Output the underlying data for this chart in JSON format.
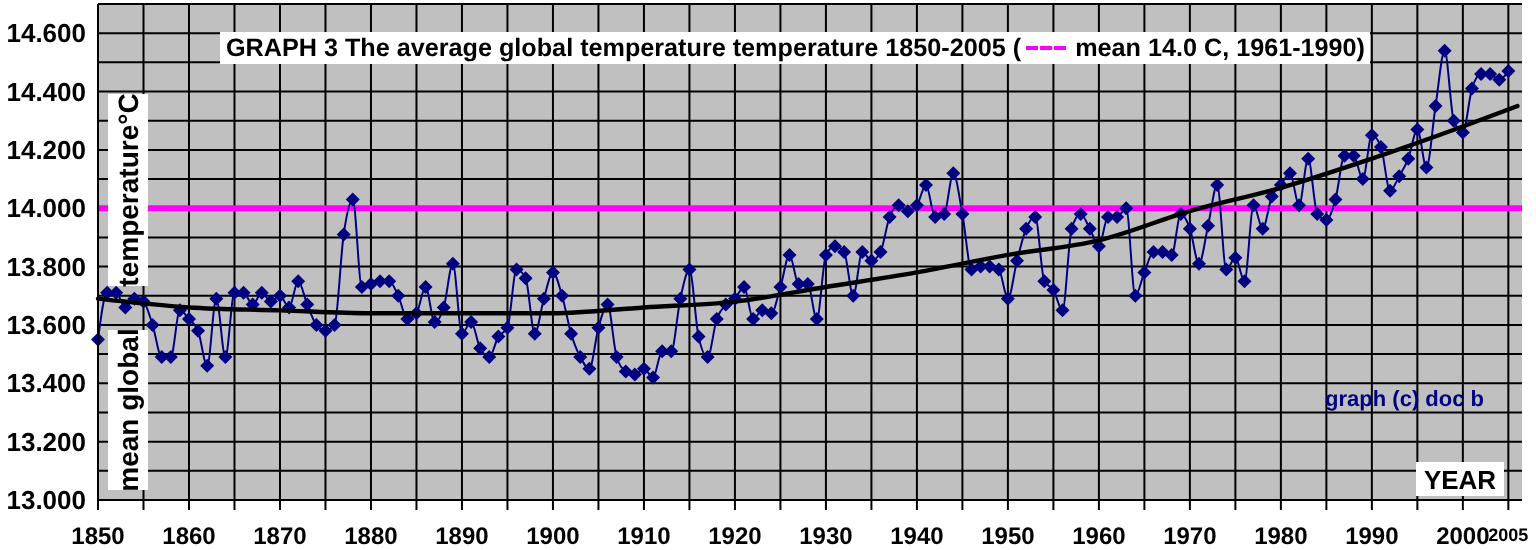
{
  "chart_data": {
    "type": "line",
    "title": "GRAPH 3 The average global temperature temperature 1850-2005 (",
    "xlabel": "YEAR",
    "ylabel": "mean global temperature°C",
    "annotations": [
      "graph (c) doc b"
    ],
    "xlim": [
      1850,
      2006.5
    ],
    "ylim": [
      13,
      14.7
    ],
    "xticks": [
      1850,
      {
        "value": 1855,
        "label": null
      },
      1860,
      {
        "value": 1865,
        "label": null
      },
      1870,
      {
        "value": 1875,
        "label": null
      },
      1880,
      {
        "value": 1885,
        "label": null
      },
      1890,
      {
        "value": 1895,
        "label": null
      },
      1900,
      {
        "value": 1905,
        "label": null
      },
      1910,
      {
        "value": 1915,
        "label": null
      },
      1920,
      {
        "value": 1925,
        "label": null
      },
      1930,
      {
        "value": 1935,
        "label": null
      },
      1940,
      {
        "value": 1945,
        "label": null
      },
      1950,
      {
        "value": 1955,
        "label": null
      },
      1960,
      {
        "value": 1965,
        "label": null
      },
      1970,
      {
        "value": 1975,
        "label": null
      },
      1980,
      {
        "value": 1985,
        "label": null
      },
      1990,
      {
        "value": 1995,
        "label": null
      },
      2000,
      2005
    ],
    "yticks": [
      {
        "value": 13,
        "label": "13.000"
      },
      {
        "value": 13.1,
        "label": null
      },
      {
        "value": 13.2,
        "label": "13.200"
      },
      {
        "value": 13.3,
        "label": null
      },
      {
        "value": 13.4,
        "label": "13.400"
      },
      {
        "value": 13.5,
        "label": null
      },
      {
        "value": 13.6,
        "label": "13.600"
      },
      {
        "value": 13.7,
        "label": null
      },
      {
        "value": 13.8,
        "label": "13.800"
      },
      {
        "value": 13.9,
        "label": null
      },
      {
        "value": 14,
        "label": "14.000"
      },
      {
        "value": 14.1,
        "label": null
      },
      {
        "value": 14.2,
        "label": "14.200"
      },
      {
        "value": 14.3,
        "label": null
      },
      {
        "value": 14.4,
        "label": "14.400"
      },
      {
        "value": 14.5,
        "label": null
      },
      {
        "value": 14.6,
        "label": "14.600"
      },
      {
        "value": 14.7,
        "label": null
      }
    ],
    "grid": true,
    "marker": "diamond",
    "line_style": "solid",
    "ref_lines": [
      {
        "axis": "y",
        "value": 14.0,
        "label": "mean 14.0 C, 1961-1990)",
        "color": "#ff00ff",
        "line_style": "solid"
      }
    ],
    "series": [
      {
        "color": "#000080",
        "x": [
          1850,
          1851,
          1852,
          1853,
          1854,
          1855,
          1856,
          1857,
          1858,
          1859,
          1860,
          1861,
          1862,
          1863,
          1864,
          1865,
          1866,
          1867,
          1868,
          1869,
          1870,
          1871,
          1872,
          1873,
          1874,
          1875,
          1876,
          1877,
          1878,
          1879,
          1880,
          1881,
          1882,
          1883,
          1884,
          1885,
          1886,
          1887,
          1888,
          1889,
          1890,
          1891,
          1892,
          1893,
          1894,
          1895,
          1896,
          1897,
          1898,
          1899,
          1900,
          1901,
          1902,
          1903,
          1904,
          1905,
          1906,
          1907,
          1908,
          1909,
          1910,
          1911,
          1912,
          1913,
          1914,
          1915,
          1916,
          1917,
          1918,
          1919,
          1920,
          1921,
          1922,
          1923,
          1924,
          1925,
          1926,
          1927,
          1928,
          1929,
          1930,
          1931,
          1932,
          1933,
          1934,
          1935,
          1936,
          1937,
          1938,
          1939,
          1940,
          1941,
          1942,
          1943,
          1944,
          1945,
          1946,
          1947,
          1948,
          1949,
          1950,
          1951,
          1952,
          1953,
          1954,
          1955,
          1956,
          1957,
          1958,
          1959,
          1960,
          1961,
          1962,
          1963,
          1964,
          1965,
          1966,
          1967,
          1968,
          1969,
          1970,
          1971,
          1972,
          1973,
          1974,
          1975,
          1976,
          1977,
          1978,
          1979,
          1980,
          1981,
          1982,
          1983,
          1984,
          1985,
          1986,
          1987,
          1988,
          1989,
          1990,
          1991,
          1992,
          1993,
          1994,
          1995,
          1996,
          1997,
          1998,
          1999,
          2000,
          2001,
          2002,
          2003,
          2004,
          2005
        ],
        "values": [
          13.55,
          13.71,
          13.71,
          13.66,
          13.69,
          13.68,
          13.6,
          13.49,
          13.49,
          13.65,
          13.62,
          13.58,
          13.46,
          13.69,
          13.49,
          13.71,
          13.71,
          13.67,
          13.71,
          13.68,
          13.7,
          13.66,
          13.75,
          13.67,
          13.6,
          13.58,
          13.6,
          13.91,
          14.03,
          13.73,
          13.74,
          13.75,
          13.75,
          13.7,
          13.62,
          13.64,
          13.73,
          13.61,
          13.66,
          13.81,
          13.57,
          13.61,
          13.52,
          13.49,
          13.56,
          13.59,
          13.79,
          13.76,
          13.57,
          13.69,
          13.78,
          13.7,
          13.57,
          13.49,
          13.45,
          13.59,
          13.67,
          13.49,
          13.44,
          13.43,
          13.45,
          13.42,
          13.51,
          13.51,
          13.69,
          13.79,
          13.56,
          13.49,
          13.62,
          13.67,
          13.69,
          13.73,
          13.62,
          13.65,
          13.64,
          13.73,
          13.84,
          13.74,
          13.74,
          13.62,
          13.84,
          13.87,
          13.85,
          13.7,
          13.85,
          13.82,
          13.85,
          13.97,
          14.01,
          13.99,
          14.01,
          14.08,
          13.97,
          13.98,
          14.12,
          13.98,
          13.79,
          13.8,
          13.8,
          13.79,
          13.69,
          13.82,
          13.93,
          13.97,
          13.75,
          13.72,
          13.65,
          13.93,
          13.98,
          13.93,
          13.87,
          13.97,
          13.97,
          14.0,
          13.7,
          13.78,
          13.85,
          13.85,
          13.84,
          13.98,
          13.93,
          13.81,
          13.94,
          14.08,
          13.79,
          13.83,
          13.75,
          14.01,
          13.93,
          14.04,
          14.08,
          14.12,
          14.01,
          14.17,
          13.98,
          13.96,
          14.03,
          14.18,
          14.18,
          14.1,
          14.25,
          14.21,
          14.06,
          14.11,
          14.17,
          14.27,
          14.14,
          14.35,
          14.54,
          14.3,
          14.26,
          14.41,
          14.46,
          14.46,
          14.44,
          14.47
        ]
      },
      {
        "color": "#000000",
        "marker": "none",
        "x": [
          1850,
          1860,
          1870,
          1880,
          1890,
          1900,
          1910,
          1920,
          1930,
          1940,
          1950,
          1960,
          1970,
          1980,
          1990,
          2000,
          2006
        ],
        "values": [
          13.69,
          13.66,
          13.65,
          13.64,
          13.64,
          13.64,
          13.66,
          13.68,
          13.73,
          13.78,
          13.84,
          13.89,
          13.99,
          14.07,
          14.17,
          14.28,
          14.35
        ]
      }
    ]
  }
}
